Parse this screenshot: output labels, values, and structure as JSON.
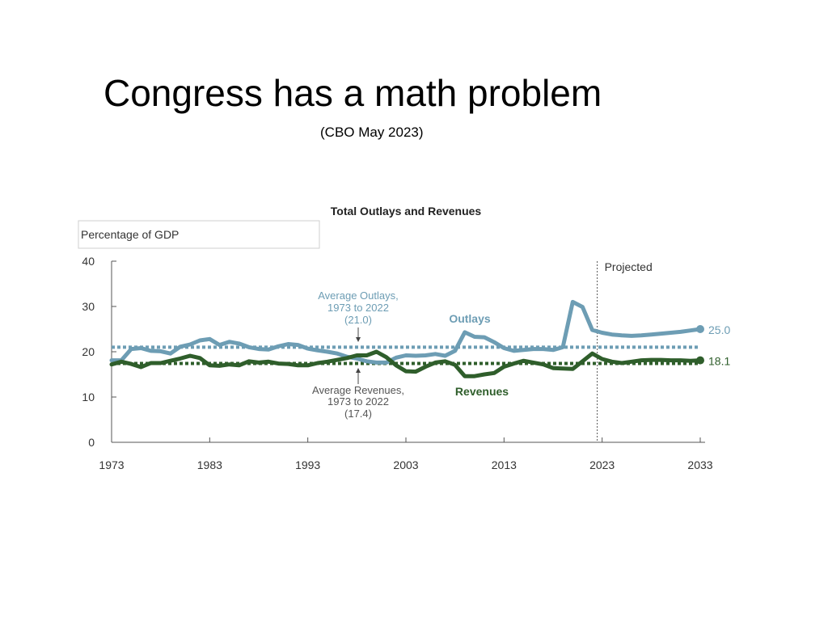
{
  "slide": {
    "title": "Congress has a math problem",
    "subtitle": "(CBO May 2023)"
  },
  "chart_data": {
    "type": "line",
    "title": "Total Outlays and Revenues",
    "unit_label": "Percentage of GDP",
    "xlabel": "",
    "ylabel": "",
    "ylim": [
      0,
      40
    ],
    "xlim": [
      1973,
      2033
    ],
    "y_ticks": [
      "0",
      "10",
      "20",
      "30",
      "40"
    ],
    "x_ticks": [
      "1973",
      "1983",
      "1993",
      "2003",
      "2013",
      "2023",
      "2033"
    ],
    "grid": false,
    "projected_divider": {
      "x": 2022.5,
      "label": "Projected"
    },
    "colors": {
      "outlays": "#6d9db4",
      "revenues": "#2f5e2b",
      "axis": "#555555"
    },
    "series": [
      {
        "name": "Outlays",
        "x": [
          1973,
          1974,
          1975,
          1976,
          1977,
          1978,
          1979,
          1980,
          1981,
          1982,
          1983,
          1984,
          1985,
          1986,
          1987,
          1988,
          1989,
          1990,
          1991,
          1992,
          1993,
          1994,
          1995,
          1996,
          1997,
          1998,
          1999,
          2000,
          2001,
          2002,
          2003,
          2004,
          2005,
          2006,
          2007,
          2008,
          2009,
          2010,
          2011,
          2012,
          2013,
          2014,
          2015,
          2016,
          2017,
          2018,
          2019,
          2020,
          2021,
          2022,
          2023,
          2024,
          2025,
          2026,
          2027,
          2028,
          2029,
          2030,
          2031,
          2032,
          2033
        ],
        "values": [
          18.1,
          18.1,
          20.6,
          20.8,
          20.2,
          20.1,
          19.6,
          21.1,
          21.6,
          22.5,
          22.8,
          21.5,
          22.2,
          21.8,
          21.0,
          20.6,
          20.5,
          21.2,
          21.7,
          21.5,
          20.7,
          20.3,
          20.0,
          19.6,
          18.9,
          18.5,
          17.9,
          17.6,
          17.6,
          18.7,
          19.2,
          19.1,
          19.2,
          19.5,
          19.1,
          20.2,
          24.3,
          23.3,
          23.2,
          22.1,
          20.8,
          20.2,
          20.4,
          20.6,
          20.6,
          20.4,
          21.0,
          31.0,
          29.9,
          24.8,
          24.2,
          23.8,
          23.6,
          23.5,
          23.6,
          23.8,
          24.0,
          24.2,
          24.4,
          24.7,
          25.0
        ],
        "end_label": "25.0"
      },
      {
        "name": "Revenues",
        "x": [
          1973,
          1974,
          1975,
          1976,
          1977,
          1978,
          1979,
          1980,
          1981,
          1982,
          1983,
          1984,
          1985,
          1986,
          1987,
          1988,
          1989,
          1990,
          1991,
          1992,
          1993,
          1994,
          1995,
          1996,
          1997,
          1998,
          1999,
          2000,
          2001,
          2002,
          2003,
          2004,
          2005,
          2006,
          2007,
          2008,
          2009,
          2010,
          2011,
          2012,
          2013,
          2014,
          2015,
          2016,
          2017,
          2018,
          2019,
          2020,
          2021,
          2022,
          2023,
          2024,
          2025,
          2026,
          2027,
          2028,
          2029,
          2030,
          2031,
          2032,
          2033
        ],
        "values": [
          17.2,
          17.8,
          17.3,
          16.6,
          17.5,
          17.5,
          18.0,
          18.5,
          19.1,
          18.6,
          17.0,
          16.9,
          17.2,
          17.0,
          17.9,
          17.6,
          17.8,
          17.4,
          17.3,
          17.0,
          17.0,
          17.5,
          17.8,
          18.2,
          18.6,
          19.2,
          19.2,
          20.0,
          18.8,
          17.0,
          15.7,
          15.6,
          16.7,
          17.6,
          17.9,
          17.1,
          14.6,
          14.6,
          15.0,
          15.3,
          16.7,
          17.4,
          18.0,
          17.6,
          17.2,
          16.4,
          16.3,
          16.2,
          17.9,
          19.6,
          18.4,
          17.8,
          17.5,
          17.8,
          18.1,
          18.2,
          18.2,
          18.1,
          18.1,
          18.0,
          18.1
        ],
        "end_label": "18.1"
      }
    ],
    "reference_lines": [
      {
        "name": "average-outlays",
        "value": 21.0,
        "label_lines": [
          "Average Outlays,",
          "1973 to 2022",
          "(21.0)"
        ]
      },
      {
        "name": "average-revenues",
        "value": 17.4,
        "label_lines": [
          "Average Revenues,",
          "1973 to 2022",
          "(17.4)"
        ]
      }
    ]
  }
}
